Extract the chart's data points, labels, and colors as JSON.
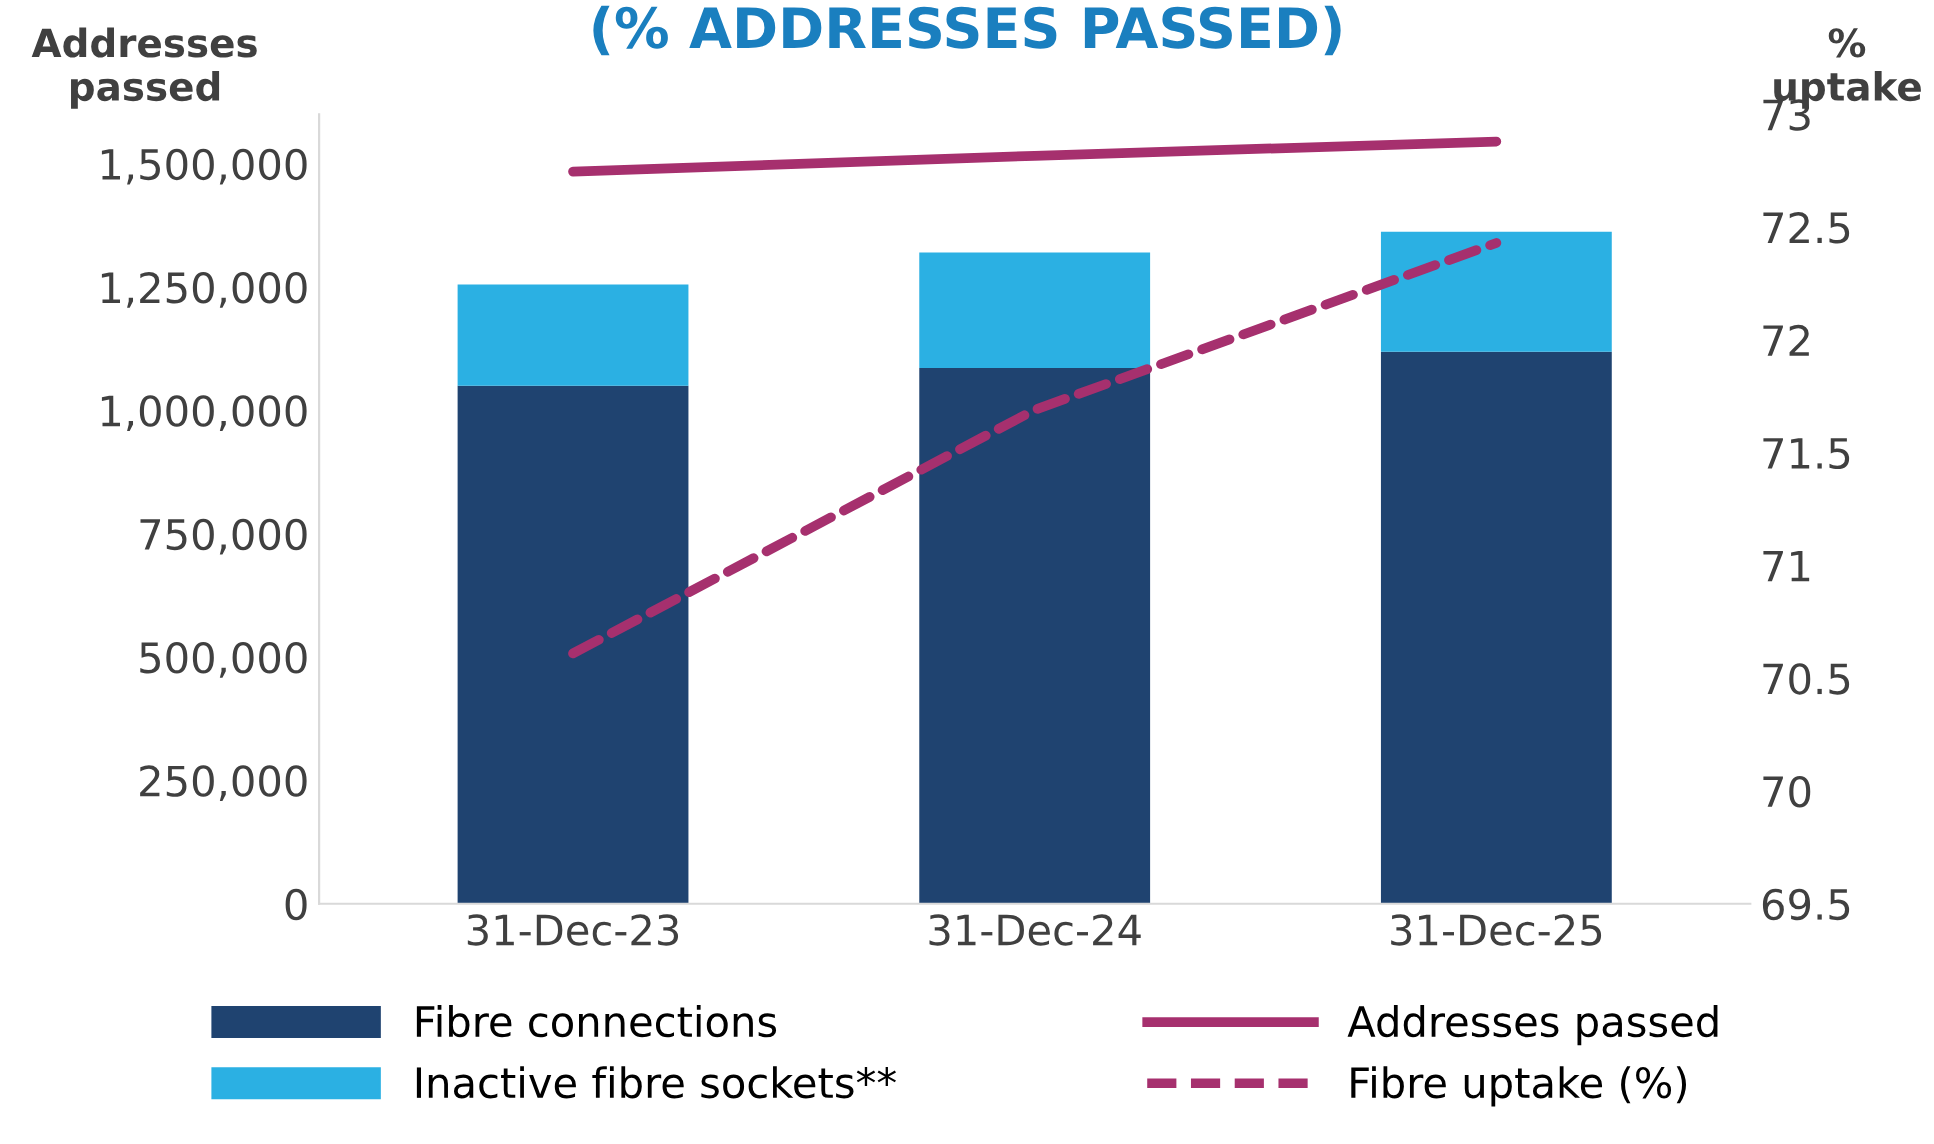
{
  "chart_data": {
    "type": "bar",
    "title": "(% ADDRESSES PASSED)",
    "ylabel": "Addresses passed",
    "y2label": "% uptake",
    "categories": [
      "31-Dec-23",
      "31-Dec-24",
      "31-Dec-25"
    ],
    "stacked": true,
    "series": [
      {
        "name": "Fibre connections",
        "color": "#1f4370",
        "values": [
          1050000,
          1086000,
          1119000
        ]
      },
      {
        "name": "Inactive fibre sockets**",
        "color": "#2bb0e3",
        "values": [
          205000,
          234000,
          243000
        ]
      },
      {
        "name": "Addresses passed",
        "type": "line",
        "color": "#a6306e",
        "line_style": "solid",
        "values": [
          1484000,
          1516000,
          1545000
        ]
      },
      {
        "name": "Fibre uptake (%)",
        "type": "line",
        "axis": "y2",
        "color": "#a6306e",
        "line_style": "dashed",
        "values": [
          70.61,
          71.69,
          72.43
        ]
      }
    ],
    "ylim": [
      0,
      1600000
    ],
    "yticks": [
      {
        "value": 0,
        "label": "0"
      },
      {
        "value": 250000,
        "label": "250,000"
      },
      {
        "value": 500000,
        "label": "500,000"
      },
      {
        "value": 750000,
        "label": "750,000"
      },
      {
        "value": 1000000,
        "label": "1,000,000"
      },
      {
        "value": 1250000,
        "label": "1,250,000"
      },
      {
        "value": 1500000,
        "label": "1,500,000"
      }
    ],
    "y2lim": [
      69.5,
      73
    ],
    "y2ticks": [
      69.5,
      70,
      70.5,
      71,
      71.5,
      72,
      72.5,
      73
    ],
    "grid": false,
    "legend": "bottom",
    "marker": "none"
  }
}
